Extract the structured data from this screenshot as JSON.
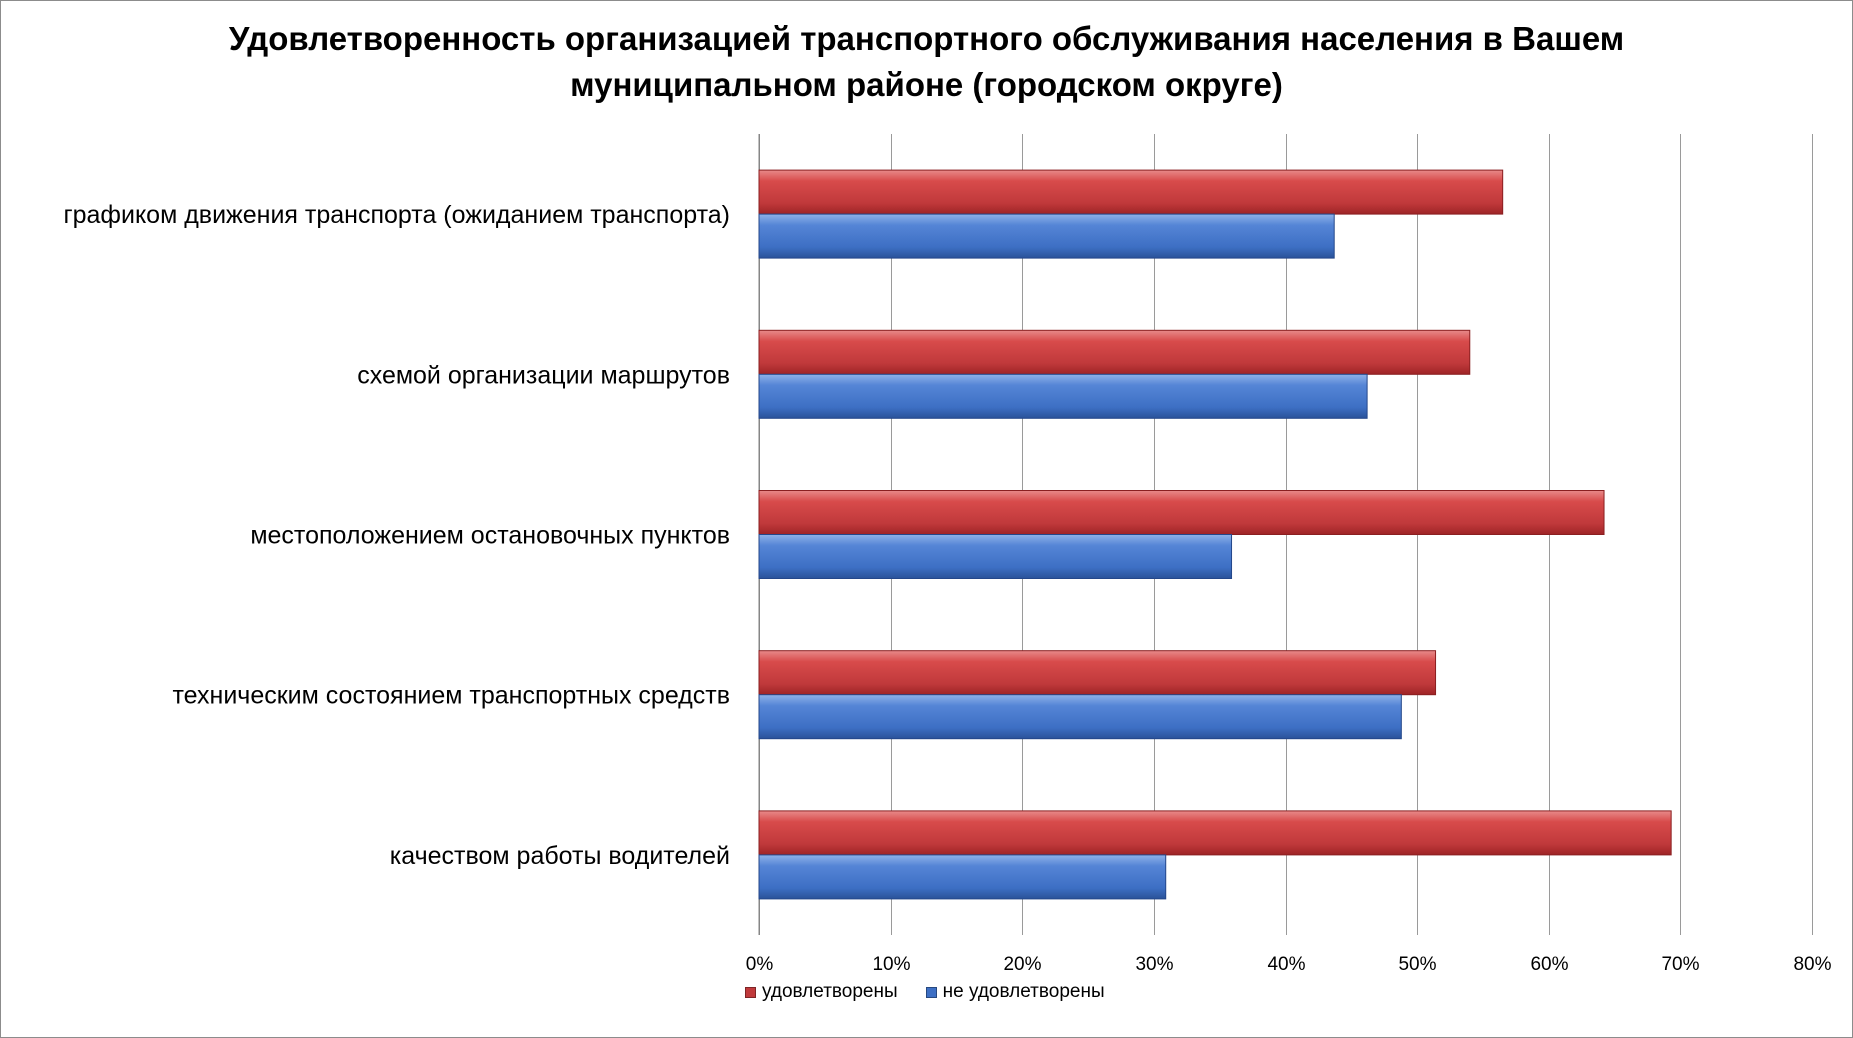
{
  "chart_data": {
    "type": "bar",
    "orientation": "horizontal",
    "title": "Удовлетворенность организацией транспортного обслуживания населения в Вашем\nмуниципальном районе (городском округе)",
    "categories": [
      "графиком движения транспорта (ожиданием транспорта)",
      "схемой организации маршрутов",
      "местоположением остановочных пунктов",
      "техническим состоянием транспортных средств",
      "качеством работы водителей"
    ],
    "series": [
      {
        "name": "удовлетворены",
        "color": "#c0393b",
        "values": [
          56.5,
          54.0,
          64.2,
          51.4,
          69.3
        ]
      },
      {
        "name": "не удовлетворены",
        "color": "#3d6fc4",
        "values": [
          43.7,
          46.2,
          35.9,
          48.8,
          30.9
        ]
      }
    ],
    "xlim": [
      0,
      80
    ],
    "xticks": [
      "0%",
      "10%",
      "20%",
      "30%",
      "40%",
      "50%",
      "60%",
      "70%",
      "80%"
    ],
    "grid": true,
    "legend_position": "bottom"
  }
}
